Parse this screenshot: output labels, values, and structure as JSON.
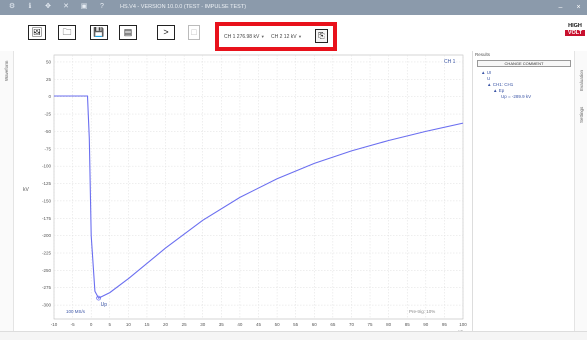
{
  "titlebar": {
    "title": "HS.V4 - VERSION 10.0.0 (TEST - IMPULSE TEST)",
    "icons": [
      "gear-icon",
      "info-icon",
      "move-icon",
      "tools-icon",
      "window-icon",
      "help-icon"
    ]
  },
  "toolbar": {
    "buttons": [
      "image-icon",
      "folder-icon",
      "save-icon",
      "list-icon",
      "play-icon",
      "stop-icon"
    ],
    "ch1_label": "CH 1",
    "ch1_value": "276.98 kV",
    "ch2_label": "CH 2",
    "ch2_value": "12 kV",
    "logo_top": "HIGH",
    "logo_bottom": "VOLT"
  },
  "left_strip": {
    "label": "Waveform"
  },
  "right_strip": {
    "label1": "Evaluation",
    "label2": "Settings"
  },
  "results": {
    "header": "Results",
    "change_comment": "CHANGE COMMENT",
    "tree": [
      "UI",
      "U",
      "CH1: CH1",
      "Ep",
      "Up = -289.9 kV"
    ]
  },
  "plot": {
    "channel_tag": "CH 1",
    "scale_left": "100 MS/s",
    "scale_right": "Pre-trig: 10%",
    "peak_label": "Up",
    "y_unit": "kV",
    "x_unit": "µs"
  },
  "chart_data": {
    "type": "line",
    "xlabel": "µs",
    "ylabel": "kV",
    "xlim": [
      -10,
      100
    ],
    "ylim": [
      -320,
      60
    ],
    "x_ticks": [
      -10,
      -5,
      0,
      5,
      10,
      15,
      20,
      25,
      30,
      35,
      40,
      45,
      50,
      55,
      60,
      65,
      70,
      75,
      80,
      85,
      90,
      95,
      100
    ],
    "y_ticks": [
      50,
      25,
      0,
      -25,
      -50,
      -75,
      -100,
      -125,
      -150,
      -175,
      -200,
      -225,
      -250,
      -275,
      -300
    ],
    "series": [
      {
        "color": "#6b6ff0",
        "x": [
          -10,
          -5,
          -1,
          -0.5,
          0,
          1,
          2,
          5,
          10,
          20,
          30,
          40,
          50,
          60,
          70,
          80,
          90,
          100
        ],
        "y": [
          1,
          1,
          1,
          -60,
          -200,
          -280,
          -289.9,
          -282,
          -262,
          -218,
          -178,
          -145,
          -118,
          -96,
          -78,
          -63,
          -50,
          -38
        ]
      }
    ],
    "grid": true
  }
}
